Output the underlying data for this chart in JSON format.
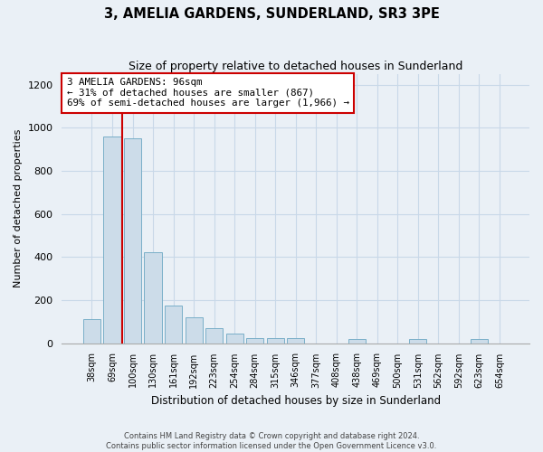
{
  "title": "3, AMELIA GARDENS, SUNDERLAND, SR3 3PE",
  "subtitle": "Size of property relative to detached houses in Sunderland",
  "xlabel": "Distribution of detached houses by size in Sunderland",
  "ylabel": "Number of detached properties",
  "footer_line1": "Contains HM Land Registry data © Crown copyright and database right 2024.",
  "footer_line2": "Contains public sector information licensed under the Open Government Licence v3.0.",
  "bar_labels": [
    "38sqm",
    "69sqm",
    "100sqm",
    "130sqm",
    "161sqm",
    "192sqm",
    "223sqm",
    "254sqm",
    "284sqm",
    "315sqm",
    "346sqm",
    "377sqm",
    "408sqm",
    "438sqm",
    "469sqm",
    "500sqm",
    "531sqm",
    "562sqm",
    "592sqm",
    "623sqm",
    "654sqm"
  ],
  "bar_values": [
    110,
    960,
    950,
    420,
    175,
    120,
    70,
    45,
    25,
    25,
    25,
    0,
    0,
    20,
    0,
    0,
    20,
    0,
    0,
    20,
    0
  ],
  "bar_color": "#ccdce9",
  "bar_edge_color": "#7aafc8",
  "grid_color": "#c8d8e8",
  "background_color": "#eaf0f6",
  "property_label": "3 AMELIA GARDENS: 96sqm",
  "pct_smaller": 31,
  "n_smaller": 867,
  "pct_larger_semi": 69,
  "n_larger_semi": 1966,
  "annotation_box_color": "#ffffff",
  "annotation_box_edge": "#cc0000",
  "vline_color": "#cc0000",
  "vline_x": 1.5,
  "ylim": [
    0,
    1250
  ],
  "yticks": [
    0,
    200,
    400,
    600,
    800,
    1000,
    1200
  ]
}
